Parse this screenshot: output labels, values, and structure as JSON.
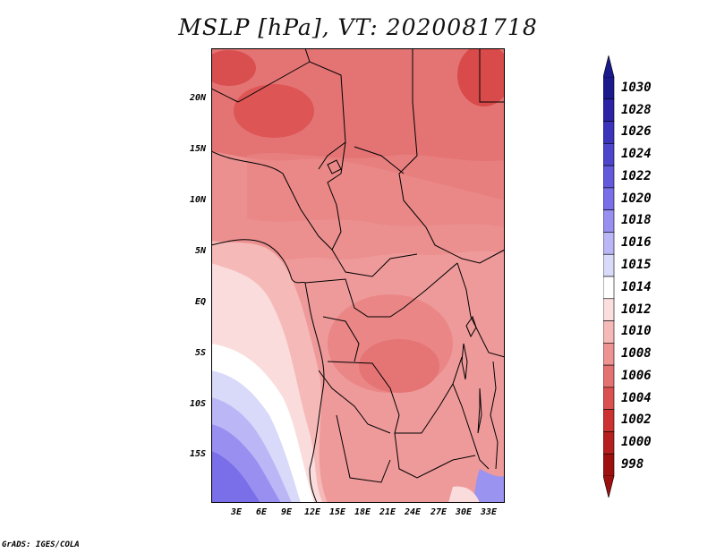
{
  "title": "MSLP [hPa], VT: 2020081718",
  "footer": "GrADS: IGES/COLA",
  "y_axis_labels": [
    "20N",
    "15N",
    "10N",
    "5N",
    "EQ",
    "5S",
    "10S",
    "15S"
  ],
  "x_axis_labels": [
    "3E",
    "6E",
    "9E",
    "12E",
    "15E",
    "18E",
    "21E",
    "24E",
    "27E",
    "30E",
    "33E"
  ],
  "colorbar": {
    "labels": [
      "1030",
      "1028",
      "1026",
      "1024",
      "1022",
      "1020",
      "1018",
      "1016",
      "1015",
      "1014",
      "1012",
      "1010",
      "1008",
      "1006",
      "1004",
      "1002",
      "1000",
      "998"
    ],
    "colors": [
      "#1b1a8c",
      "#2c23a6",
      "#3b33bc",
      "#4d46cc",
      "#6359dd",
      "#7a6ee9",
      "#998ff0",
      "#bbb6f6",
      "#d9d9f9",
      "#ffffff",
      "#fbdfdf",
      "#f5b9b8",
      "#ee9393",
      "#e57272",
      "#db5050",
      "#cc3232",
      "#b51f1f",
      "#9e1010"
    ]
  },
  "map": {
    "region": "Central Africa",
    "lon_range": [
      0,
      35
    ],
    "lat_range": [
      -20,
      24
    ]
  }
}
